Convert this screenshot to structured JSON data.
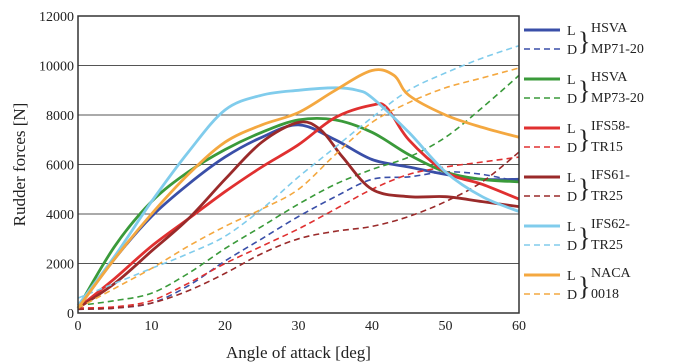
{
  "chart_data": {
    "type": "line",
    "xlabel": "Angle of attack [deg]",
    "ylabel": "Rudder forces [N]",
    "xlim": [
      0,
      60
    ],
    "ylim": [
      0,
      12000
    ],
    "xticks": [
      0,
      10,
      20,
      30,
      40,
      50,
      60
    ],
    "yticks": [
      0,
      2000,
      4000,
      6000,
      8000,
      10000,
      12000
    ],
    "grid": "horizontal",
    "legend_position": "right",
    "groups": [
      {
        "label_top": "HSVA",
        "label_bottom": "MP71-20",
        "color": "#3a4fa8",
        "lift": [
          [
            0,
            200
          ],
          [
            5,
            2200
          ],
          [
            10,
            3900
          ],
          [
            15,
            5200
          ],
          [
            20,
            6300
          ],
          [
            25,
            7100
          ],
          [
            30,
            7600
          ],
          [
            35,
            7000
          ],
          [
            40,
            6200
          ],
          [
            45,
            5900
          ],
          [
            50,
            5600
          ],
          [
            55,
            5400
          ],
          [
            60,
            5400
          ]
        ],
        "drag": [
          [
            0,
            150
          ],
          [
            5,
            200
          ],
          [
            10,
            400
          ],
          [
            15,
            1100
          ],
          [
            20,
            2100
          ],
          [
            25,
            3000
          ],
          [
            30,
            3900
          ],
          [
            35,
            4700
          ],
          [
            40,
            5400
          ],
          [
            45,
            5500
          ],
          [
            50,
            5700
          ],
          [
            55,
            5600
          ],
          [
            60,
            5300
          ]
        ]
      },
      {
        "label_top": "HSVA",
        "label_bottom": "MP73-20",
        "color": "#3a9a3a",
        "lift": [
          [
            0,
            200
          ],
          [
            5,
            2700
          ],
          [
            10,
            4500
          ],
          [
            15,
            5700
          ],
          [
            20,
            6600
          ],
          [
            25,
            7300
          ],
          [
            30,
            7800
          ],
          [
            35,
            7800
          ],
          [
            40,
            7300
          ],
          [
            45,
            6400
          ],
          [
            50,
            5700
          ],
          [
            55,
            5400
          ],
          [
            60,
            5300
          ]
        ],
        "drag": [
          [
            0,
            300
          ],
          [
            5,
            500
          ],
          [
            10,
            800
          ],
          [
            15,
            1600
          ],
          [
            20,
            2600
          ],
          [
            25,
            3500
          ],
          [
            30,
            4400
          ],
          [
            35,
            5200
          ],
          [
            40,
            5800
          ],
          [
            45,
            6300
          ],
          [
            50,
            7100
          ],
          [
            55,
            8300
          ],
          [
            60,
            9600
          ]
        ]
      },
      {
        "label_top": "IFS58-",
        "label_bottom": "TR15",
        "color": "#e03030",
        "lift": [
          [
            0,
            200
          ],
          [
            5,
            1400
          ],
          [
            10,
            2700
          ],
          [
            15,
            3800
          ],
          [
            20,
            4900
          ],
          [
            25,
            5900
          ],
          [
            30,
            6800
          ],
          [
            35,
            7900
          ],
          [
            40,
            8400
          ],
          [
            42,
            8300
          ],
          [
            45,
            7000
          ],
          [
            50,
            5700
          ],
          [
            55,
            5200
          ],
          [
            60,
            4600
          ]
        ],
        "drag": [
          [
            0,
            200
          ],
          [
            5,
            250
          ],
          [
            10,
            500
          ],
          [
            15,
            1200
          ],
          [
            20,
            2000
          ],
          [
            25,
            2700
          ],
          [
            30,
            3400
          ],
          [
            35,
            4200
          ],
          [
            40,
            5000
          ],
          [
            45,
            5600
          ],
          [
            50,
            5900
          ],
          [
            55,
            6100
          ],
          [
            60,
            6300
          ]
        ]
      },
      {
        "label_top": "IFS61-",
        "label_bottom": "TR25",
        "color": "#9a2a2a",
        "lift": [
          [
            0,
            200
          ],
          [
            5,
            1200
          ],
          [
            10,
            2500
          ],
          [
            15,
            3800
          ],
          [
            20,
            5400
          ],
          [
            25,
            6900
          ],
          [
            30,
            7700
          ],
          [
            33,
            7400
          ],
          [
            36,
            6300
          ],
          [
            40,
            5000
          ],
          [
            45,
            4700
          ],
          [
            50,
            4700
          ],
          [
            55,
            4500
          ],
          [
            60,
            4300
          ]
        ],
        "drag": [
          [
            0,
            150
          ],
          [
            5,
            200
          ],
          [
            10,
            400
          ],
          [
            15,
            900
          ],
          [
            20,
            1600
          ],
          [
            25,
            2400
          ],
          [
            30,
            3000
          ],
          [
            35,
            3300
          ],
          [
            40,
            3500
          ],
          [
            45,
            3900
          ],
          [
            50,
            4500
          ],
          [
            55,
            5300
          ],
          [
            60,
            6500
          ]
        ]
      },
      {
        "label_top": "IFS62-",
        "label_bottom": "TR25",
        "color": "#80ccec",
        "lift": [
          [
            0,
            300
          ],
          [
            5,
            2300
          ],
          [
            10,
            4500
          ],
          [
            15,
            6500
          ],
          [
            20,
            8200
          ],
          [
            25,
            8800
          ],
          [
            30,
            9000
          ],
          [
            35,
            9100
          ],
          [
            38,
            9000
          ],
          [
            40,
            8700
          ],
          [
            45,
            7300
          ],
          [
            50,
            5700
          ],
          [
            55,
            4700
          ],
          [
            60,
            4100
          ]
        ],
        "drag": [
          [
            0,
            600
          ],
          [
            5,
            1200
          ],
          [
            10,
            1800
          ],
          [
            15,
            2400
          ],
          [
            20,
            3100
          ],
          [
            25,
            4200
          ],
          [
            30,
            5500
          ],
          [
            35,
            6700
          ],
          [
            40,
            7900
          ],
          [
            45,
            9000
          ],
          [
            50,
            9700
          ],
          [
            55,
            10300
          ],
          [
            60,
            10800
          ]
        ]
      },
      {
        "label_top": "NACA",
        "label_bottom": "0018",
        "color": "#f4a840",
        "lift": [
          [
            0,
            200
          ],
          [
            5,
            2200
          ],
          [
            10,
            4000
          ],
          [
            15,
            5600
          ],
          [
            20,
            6900
          ],
          [
            25,
            7600
          ],
          [
            30,
            8100
          ],
          [
            35,
            9000
          ],
          [
            40,
            9800
          ],
          [
            43,
            9600
          ],
          [
            45,
            8800
          ],
          [
            50,
            8000
          ],
          [
            55,
            7500
          ],
          [
            60,
            7100
          ]
        ],
        "drag": [
          [
            0,
            200
          ],
          [
            5,
            1000
          ],
          [
            10,
            1800
          ],
          [
            15,
            2700
          ],
          [
            20,
            3500
          ],
          [
            25,
            4200
          ],
          [
            30,
            5000
          ],
          [
            35,
            6400
          ],
          [
            40,
            7700
          ],
          [
            45,
            8500
          ],
          [
            50,
            9100
          ],
          [
            55,
            9500
          ],
          [
            60,
            9900
          ]
        ]
      }
    ],
    "legend_line_labels": {
      "lift": "L",
      "drag": "D"
    }
  }
}
